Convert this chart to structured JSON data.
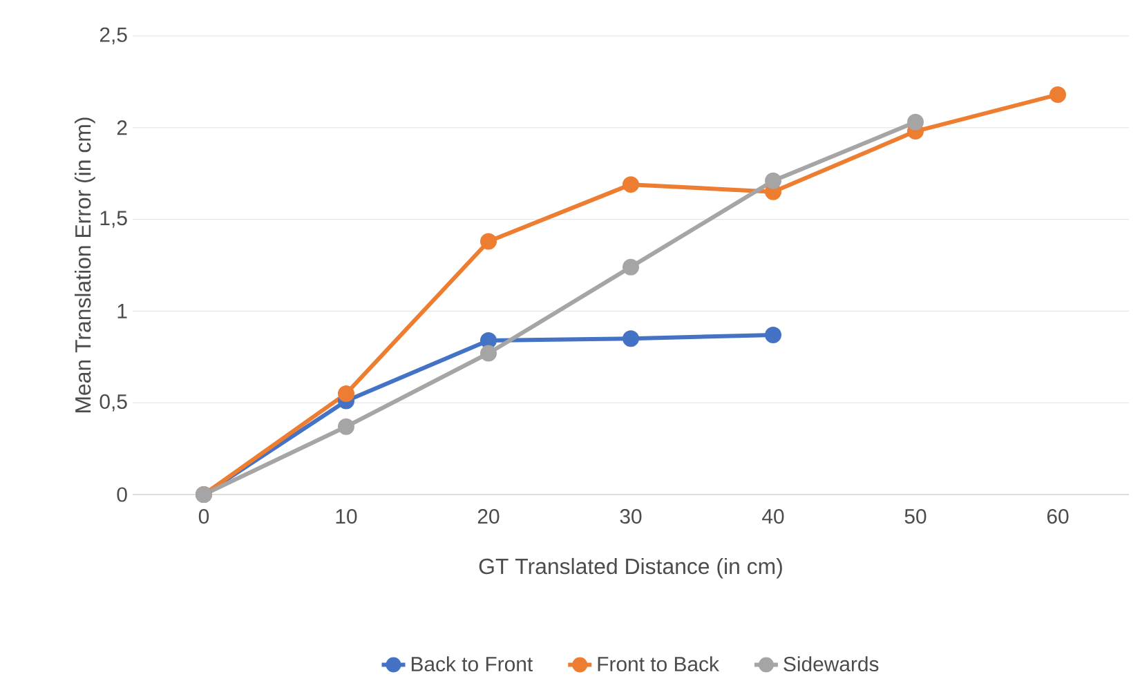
{
  "chart_data": {
    "type": "line",
    "categories": [
      "0",
      "10",
      "20",
      "30",
      "40",
      "50",
      "60"
    ],
    "xlabel": "GT Translated Distance (in cm)",
    "ylabel": "Mean Translation Error (in cm)",
    "series": [
      {
        "name": "Back to Front",
        "color": "#4472c4",
        "values": [
          0,
          0.51,
          0.84,
          0.85,
          0.87,
          null,
          null
        ]
      },
      {
        "name": "Front to Back",
        "color": "#ed7d31",
        "values": [
          0,
          0.55,
          1.38,
          1.69,
          1.65,
          1.98,
          2.18
        ]
      },
      {
        "name": "Sidewards",
        "color": "#a5a5a5",
        "values": [
          0,
          0.37,
          0.77,
          1.24,
          1.71,
          2.03,
          null
        ]
      }
    ],
    "ylim": [
      0,
      2.5
    ],
    "yticks": [
      0,
      {
        "value": 0.5,
        "label": "0,5"
      },
      1,
      {
        "value": 1.5,
        "label": "1,5"
      },
      2,
      {
        "value": 2.5,
        "label": "2,5"
      }
    ],
    "grid": "y",
    "legend": "bottom",
    "marker": "circle",
    "line_style": "solid"
  }
}
